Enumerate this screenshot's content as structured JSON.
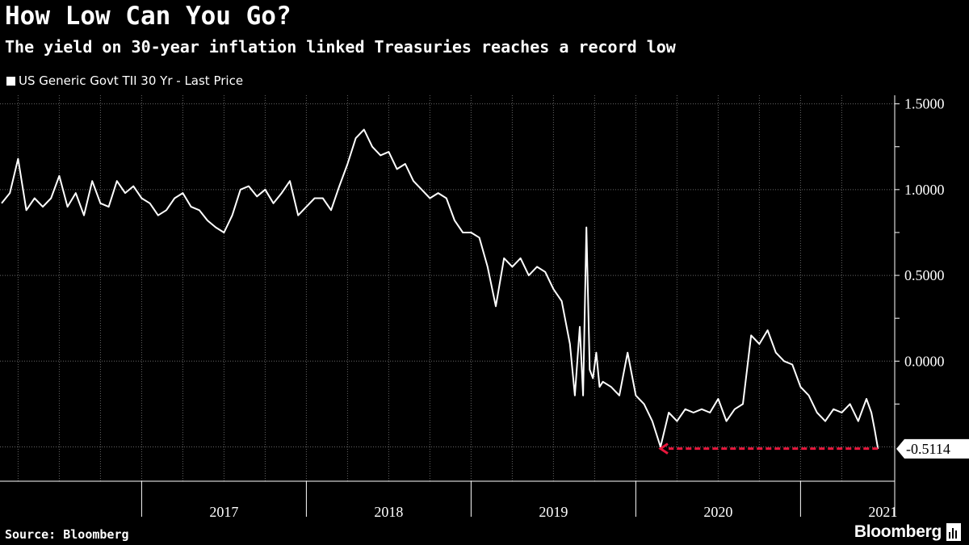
{
  "header": {
    "title": "How Low Can You Go?",
    "subtitle": "The yield on 30-year inflation linked Treasuries reaches a record low"
  },
  "legend": {
    "label": "US Generic Govt TII 30 Yr - Last Price"
  },
  "footer": {
    "source": "Source: Bloomberg",
    "brand": "Bloomberg"
  },
  "colors": {
    "background": "#000000",
    "line": "#ffffff",
    "grid": "#666666",
    "arrow": "#e8173c"
  },
  "chart_data": {
    "type": "line",
    "title": "How Low Can You Go?",
    "ylim": [
      -0.7,
      1.55
    ],
    "xlim": [
      2016.15,
      2021.5
    ],
    "yticks": [
      1.5,
      1.0,
      0.5,
      0.0
    ],
    "ytick_labels": [
      "1.5000",
      "1.0000",
      "0.5000",
      "0.0000"
    ],
    "year_labels": [
      "2017",
      "2018",
      "2019",
      "2020",
      "2021"
    ],
    "year_centers": [
      2017.5,
      2018.5,
      2019.5,
      2020.5,
      2021.5
    ],
    "year_boundaries": [
      2017,
      2018,
      2019,
      2020,
      2021
    ],
    "last_value": -0.5114,
    "last_value_label": "-0.5114",
    "annotation": "dashed arrow from latest value back to prior low (Mar 2020)",
    "arrow_from_x": 2021.47,
    "arrow_to_x": 2020.15,
    "arrow_y": -0.51,
    "series": [
      {
        "name": "US Generic Govt TII 30 Yr - Last Price",
        "x": [
          2016.15,
          2016.2,
          2016.25,
          2016.3,
          2016.35,
          2016.4,
          2016.45,
          2016.5,
          2016.55,
          2016.6,
          2016.65,
          2016.7,
          2016.75,
          2016.8,
          2016.85,
          2016.9,
          2016.95,
          2017.0,
          2017.05,
          2017.1,
          2017.15,
          2017.2,
          2017.25,
          2017.3,
          2017.35,
          2017.4,
          2017.45,
          2017.5,
          2017.55,
          2017.6,
          2017.65,
          2017.7,
          2017.75,
          2017.8,
          2017.85,
          2017.9,
          2017.95,
          2018.0,
          2018.05,
          2018.1,
          2018.15,
          2018.2,
          2018.25,
          2018.3,
          2018.35,
          2018.4,
          2018.45,
          2018.5,
          2018.55,
          2018.6,
          2018.65,
          2018.7,
          2018.75,
          2018.8,
          2018.85,
          2018.9,
          2018.95,
          2019.0,
          2019.05,
          2019.1,
          2019.15,
          2019.2,
          2019.25,
          2019.3,
          2019.35,
          2019.4,
          2019.45,
          2019.5,
          2019.55,
          2019.6,
          2019.63,
          2019.66,
          2019.68,
          2019.7,
          2019.72,
          2019.74,
          2019.76,
          2019.78,
          2019.8,
          2019.85,
          2019.9,
          2019.95,
          2020.0,
          2020.05,
          2020.1,
          2020.15,
          2020.2,
          2020.25,
          2020.3,
          2020.35,
          2020.4,
          2020.45,
          2020.5,
          2020.55,
          2020.6,
          2020.65,
          2020.7,
          2020.75,
          2020.8,
          2020.85,
          2020.9,
          2020.95,
          2021.0,
          2021.05,
          2021.1,
          2021.15,
          2021.2,
          2021.25,
          2021.3,
          2021.35,
          2021.4,
          2021.43,
          2021.45,
          2021.47
        ],
        "values": [
          0.92,
          0.98,
          1.18,
          0.88,
          0.95,
          0.9,
          0.95,
          1.08,
          0.9,
          0.98,
          0.85,
          1.05,
          0.92,
          0.9,
          1.05,
          0.98,
          1.02,
          0.95,
          0.92,
          0.85,
          0.88,
          0.95,
          0.98,
          0.9,
          0.88,
          0.82,
          0.78,
          0.75,
          0.85,
          1.0,
          1.02,
          0.96,
          1.0,
          0.92,
          0.98,
          1.05,
          0.85,
          0.9,
          0.95,
          0.95,
          0.88,
          1.02,
          1.15,
          1.3,
          1.35,
          1.25,
          1.2,
          1.22,
          1.12,
          1.15,
          1.05,
          1.0,
          0.95,
          0.98,
          0.95,
          0.82,
          0.75,
          0.75,
          0.72,
          0.55,
          0.32,
          0.6,
          0.55,
          0.6,
          0.5,
          0.55,
          0.52,
          0.42,
          0.35,
          0.1,
          -0.2,
          0.2,
          -0.2,
          0.78,
          -0.05,
          -0.1,
          0.05,
          -0.15,
          -0.12,
          -0.15,
          -0.2,
          0.05,
          -0.2,
          -0.25,
          -0.35,
          -0.5,
          -0.3,
          -0.35,
          -0.28,
          -0.3,
          -0.28,
          -0.3,
          -0.22,
          -0.35,
          -0.28,
          -0.25,
          0.15,
          0.1,
          0.18,
          0.05,
          0.0,
          -0.02,
          -0.15,
          -0.2,
          -0.3,
          -0.35,
          -0.28,
          -0.3,
          -0.25,
          -0.35,
          -0.22,
          -0.3,
          -0.4,
          -0.5114
        ]
      }
    ]
  }
}
